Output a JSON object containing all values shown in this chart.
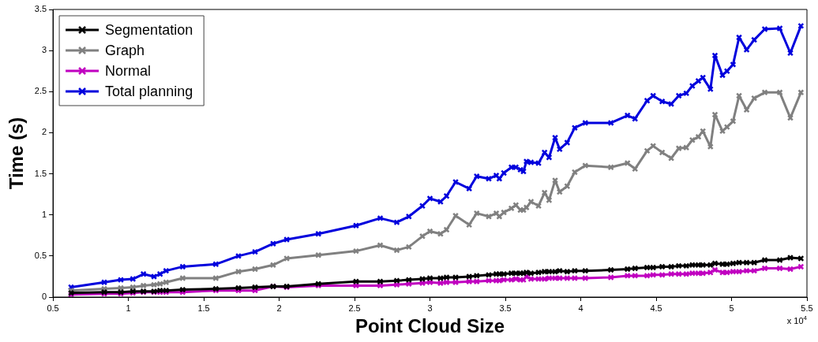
{
  "chart_data": {
    "type": "line",
    "xlabel": "Point Cloud Size",
    "ylabel": "Time (s)",
    "x": [
      0.62,
      0.84,
      0.95,
      1.03,
      1.1,
      1.17,
      1.21,
      1.25,
      1.36,
      1.58,
      1.73,
      1.84,
      1.96,
      2.05,
      2.26,
      2.51,
      2.67,
      2.78,
      2.86,
      2.95,
      3.0,
      3.07,
      3.11,
      3.17,
      3.26,
      3.31,
      3.39,
      3.44,
      3.46,
      3.49,
      3.54,
      3.57,
      3.6,
      3.62,
      3.64,
      3.67,
      3.72,
      3.76,
      3.79,
      3.83,
      3.86,
      3.91,
      3.96,
      4.03,
      4.2,
      4.31,
      4.36,
      4.44,
      4.48,
      4.54,
      4.6,
      4.65,
      4.7,
      4.74,
      4.78,
      4.81,
      4.86,
      4.89,
      4.94,
      4.97,
      5.01,
      5.05,
      5.1,
      5.15,
      5.22,
      5.32,
      5.39,
      5.46
    ],
    "series": [
      {
        "name": "Segmentation",
        "color": "#000000",
        "values": [
          0.05,
          0.06,
          0.06,
          0.07,
          0.07,
          0.07,
          0.08,
          0.08,
          0.09,
          0.1,
          0.11,
          0.12,
          0.13,
          0.13,
          0.16,
          0.19,
          0.19,
          0.2,
          0.21,
          0.22,
          0.23,
          0.23,
          0.24,
          0.24,
          0.25,
          0.26,
          0.27,
          0.28,
          0.28,
          0.28,
          0.29,
          0.29,
          0.29,
          0.29,
          0.3,
          0.29,
          0.3,
          0.31,
          0.31,
          0.31,
          0.32,
          0.31,
          0.32,
          0.32,
          0.33,
          0.34,
          0.35,
          0.36,
          0.36,
          0.37,
          0.37,
          0.38,
          0.38,
          0.39,
          0.39,
          0.39,
          0.39,
          0.41,
          0.4,
          0.4,
          0.41,
          0.42,
          0.42,
          0.42,
          0.45,
          0.45,
          0.48,
          0.47
        ]
      },
      {
        "name": "Graph",
        "color": "#808080",
        "values": [
          0.08,
          0.1,
          0.11,
          0.12,
          0.14,
          0.15,
          0.16,
          0.18,
          0.23,
          0.23,
          0.31,
          0.34,
          0.39,
          0.47,
          0.51,
          0.56,
          0.63,
          0.57,
          0.61,
          0.74,
          0.8,
          0.77,
          0.82,
          0.99,
          0.88,
          1.02,
          0.98,
          1.02,
          0.98,
          1.03,
          1.08,
          1.12,
          1.06,
          1.06,
          1.09,
          1.16,
          1.11,
          1.27,
          1.18,
          1.42,
          1.28,
          1.35,
          1.52,
          1.6,
          1.58,
          1.63,
          1.56,
          1.78,
          1.84,
          1.76,
          1.69,
          1.81,
          1.82,
          1.91,
          1.95,
          2.02,
          1.83,
          2.22,
          2.02,
          2.07,
          2.14,
          2.45,
          2.28,
          2.42,
          2.49,
          2.49,
          2.18,
          2.49
        ]
      },
      {
        "name": "Normal",
        "color": "#c000c0",
        "values": [
          0.03,
          0.04,
          0.04,
          0.05,
          0.06,
          0.06,
          0.06,
          0.06,
          0.06,
          0.08,
          0.08,
          0.08,
          0.13,
          0.12,
          0.14,
          0.14,
          0.14,
          0.15,
          0.16,
          0.17,
          0.18,
          0.17,
          0.18,
          0.18,
          0.19,
          0.19,
          0.2,
          0.2,
          0.2,
          0.21,
          0.21,
          0.22,
          0.21,
          0.21,
          0.25,
          0.22,
          0.22,
          0.22,
          0.23,
          0.23,
          0.23,
          0.23,
          0.23,
          0.23,
          0.24,
          0.26,
          0.26,
          0.26,
          0.27,
          0.27,
          0.28,
          0.28,
          0.28,
          0.29,
          0.29,
          0.29,
          0.3,
          0.33,
          0.3,
          0.3,
          0.31,
          0.31,
          0.32,
          0.32,
          0.35,
          0.35,
          0.34,
          0.37
        ]
      },
      {
        "name": "Total planning",
        "color": "#0000dd",
        "values": [
          0.12,
          0.18,
          0.21,
          0.22,
          0.28,
          0.25,
          0.28,
          0.32,
          0.37,
          0.4,
          0.5,
          0.55,
          0.65,
          0.7,
          0.77,
          0.87,
          0.96,
          0.91,
          0.98,
          1.11,
          1.2,
          1.16,
          1.23,
          1.4,
          1.32,
          1.47,
          1.44,
          1.48,
          1.44,
          1.51,
          1.58,
          1.58,
          1.55,
          1.53,
          1.65,
          1.64,
          1.63,
          1.76,
          1.7,
          1.94,
          1.8,
          1.88,
          2.06,
          2.12,
          2.12,
          2.21,
          2.17,
          2.39,
          2.45,
          2.38,
          2.35,
          2.45,
          2.48,
          2.57,
          2.63,
          2.67,
          2.53,
          2.94,
          2.7,
          2.75,
          2.83,
          3.16,
          3.01,
          3.13,
          3.26,
          3.27,
          2.97,
          3.3
        ]
      }
    ],
    "xlim": [
      0.5,
      5.5
    ],
    "xticks": [
      0.5,
      1,
      1.5,
      2,
      2.5,
      3,
      3.5,
      4,
      4.5,
      5,
      5.5
    ],
    "ylim": [
      0,
      3.5
    ],
    "yticks": [
      0,
      0.5,
      1,
      1.5,
      2,
      2.5,
      3,
      3.5
    ],
    "annotations": [
      "x 10$^{4}$"
    ],
    "grid": false,
    "legend": "top left",
    "marker": "cross",
    "line_style": "solid"
  }
}
